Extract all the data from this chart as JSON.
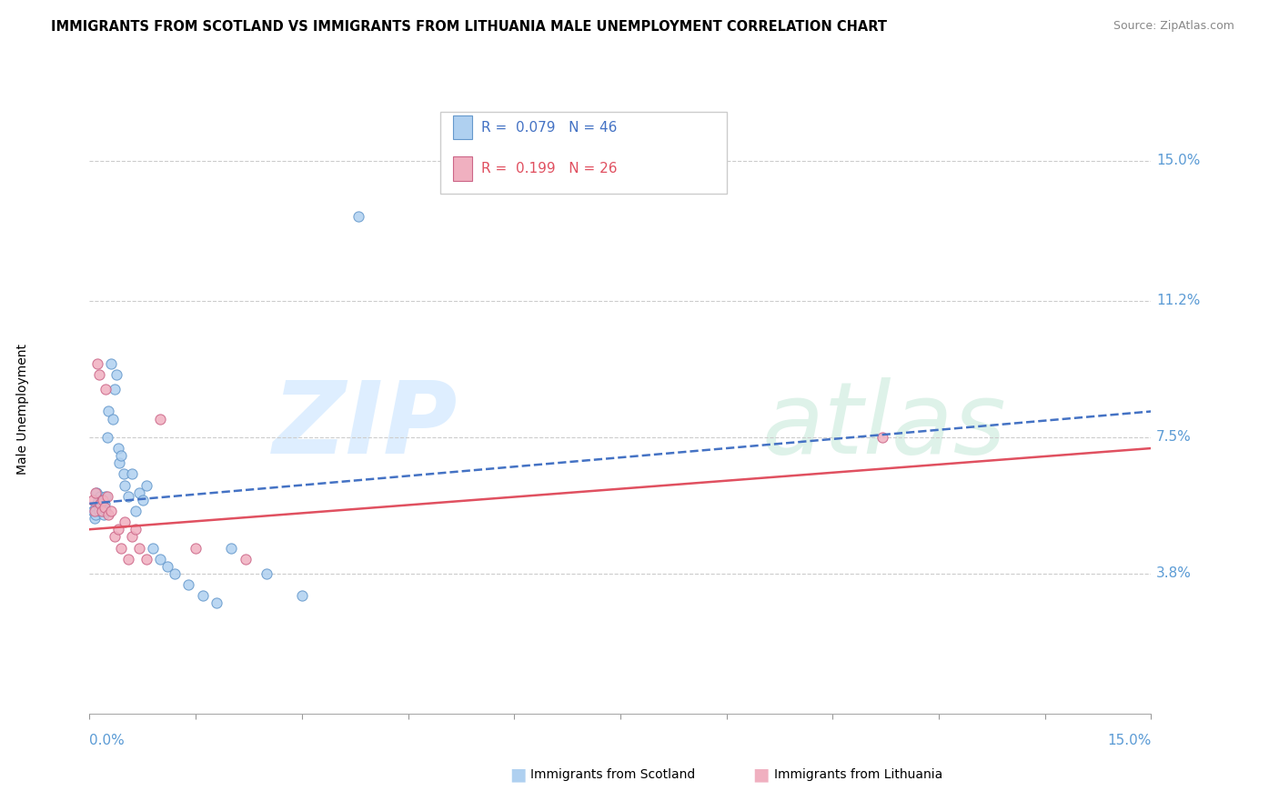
{
  "title": "IMMIGRANTS FROM SCOTLAND VS IMMIGRANTS FROM LITHUANIA MALE UNEMPLOYMENT CORRELATION CHART",
  "source": "Source: ZipAtlas.com",
  "ylabel": "Male Unemployment",
  "xmin": 0.0,
  "xmax": 15.0,
  "ymin": 0.0,
  "ymax": 16.5,
  "ytick_values": [
    3.8,
    7.5,
    11.2,
    15.0
  ],
  "ytick_labels": [
    "3.8%",
    "7.5%",
    "11.2%",
    "15.0%"
  ],
  "scotland_fill": "#afd0f0",
  "scotland_edge": "#6699cc",
  "lithuania_fill": "#f0b0c0",
  "lithuania_edge": "#cc6688",
  "scotland_line": "#4472c4",
  "lithuania_line": "#e05060",
  "legend_r1": "R =  0.079",
  "legend_n1": "N = 46",
  "legend_r2": "R =  0.199",
  "legend_n2": "N = 26",
  "scatter_scotland_x": [
    0.05,
    0.07,
    0.08,
    0.09,
    0.1,
    0.11,
    0.12,
    0.13,
    0.14,
    0.15,
    0.16,
    0.17,
    0.18,
    0.19,
    0.2,
    0.21,
    0.22,
    0.23,
    0.25,
    0.27,
    0.3,
    0.33,
    0.35,
    0.38,
    0.4,
    0.42,
    0.45,
    0.48,
    0.5,
    0.55,
    0.6,
    0.65,
    0.7,
    0.75,
    0.8,
    0.9,
    1.0,
    1.1,
    1.2,
    1.4,
    1.6,
    1.8,
    2.0,
    2.5,
    3.0,
    3.8
  ],
  "scatter_scotland_y": [
    5.5,
    5.3,
    5.6,
    5.4,
    6.0,
    5.7,
    5.8,
    5.6,
    5.5,
    5.9,
    5.7,
    5.5,
    5.8,
    5.6,
    5.4,
    5.7,
    5.9,
    5.5,
    7.5,
    8.2,
    9.5,
    8.0,
    8.8,
    9.2,
    7.2,
    6.8,
    7.0,
    6.5,
    6.2,
    5.9,
    6.5,
    5.5,
    6.0,
    5.8,
    6.2,
    4.5,
    4.2,
    4.0,
    3.8,
    3.5,
    3.2,
    3.0,
    4.5,
    3.8,
    3.2,
    13.5
  ],
  "scatter_lithuania_x": [
    0.05,
    0.07,
    0.09,
    0.11,
    0.13,
    0.15,
    0.17,
    0.19,
    0.21,
    0.23,
    0.25,
    0.27,
    0.3,
    0.35,
    0.4,
    0.45,
    0.5,
    0.55,
    0.6,
    0.65,
    0.7,
    0.8,
    1.0,
    1.5,
    2.2,
    11.2
  ],
  "scatter_lithuania_y": [
    5.8,
    5.5,
    6.0,
    9.5,
    9.2,
    5.7,
    5.5,
    5.8,
    5.6,
    8.8,
    5.9,
    5.4,
    5.5,
    4.8,
    5.0,
    4.5,
    5.2,
    4.2,
    4.8,
    5.0,
    4.5,
    4.2,
    8.0,
    4.5,
    4.2,
    7.5
  ],
  "trend_scotland_x0": 0.0,
  "trend_scotland_y0": 5.7,
  "trend_scotland_x1": 15.0,
  "trend_scotland_y1": 8.2,
  "trend_lithuania_x0": 0.0,
  "trend_lithuania_y0": 5.0,
  "trend_lithuania_x1": 15.0,
  "trend_lithuania_y1": 7.2
}
